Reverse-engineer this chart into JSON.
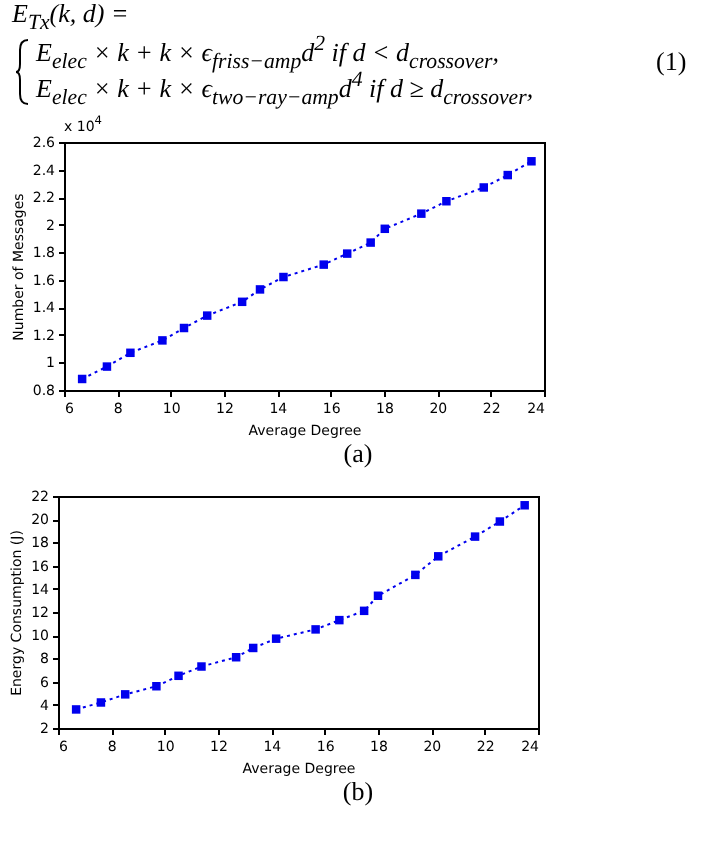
{
  "chart_data": [
    {
      "type": "other",
      "annotations": [
        "E$_{Tx}$(k, d) =",
        "E$_{elec}$ × k + k × ϵ$_{friss−amp}$d$^{2}$    if d < d$_{crossover}$,",
        "E$_{elec}$ × k + k × ϵ$_{two−ray−amp}$d$^{4}$  if d ≥ d$_{crossover}$,",
        "(1)"
      ]
    },
    {
      "type": "line",
      "xlabel": "Average Degree",
      "ylabel": "Number of Messages",
      "marker": "square",
      "line_style": "dotted",
      "xlim": [
        6,
        24
      ],
      "xticks": [
        6,
        8,
        10,
        12,
        14,
        16,
        18,
        20,
        22,
        24
      ],
      "ylim": [
        0.8,
        2.6
      ],
      "yticks": [
        0.8,
        1,
        1.2,
        1.4,
        1.6,
        1.8,
        2,
        2.2,
        2.4,
        2.6
      ],
      "annotations": [
        "x 10$^{4}$",
        "(a)"
      ],
      "series": [
        {
          "color": "#0000ee",
          "x": [
            6.68,
            7.61,
            8.49,
            9.69,
            10.5,
            11.37,
            12.68,
            13.35,
            14.23,
            15.74,
            16.62,
            17.5,
            18.03,
            19.4,
            20.34,
            21.74,
            22.64,
            23.53
          ],
          "values": [
            0.88,
            0.97,
            1.07,
            1.16,
            1.25,
            1.34,
            1.44,
            1.53,
            1.62,
            1.71,
            1.79,
            1.87,
            1.97,
            2.08,
            2.17,
            2.27,
            2.36,
            2.46
          ]
        }
      ]
    },
    {
      "type": "line",
      "xlabel": "Average Degree",
      "ylabel": "Energy Consumption (J)",
      "marker": "square",
      "line_style": "dotted",
      "xlim": [
        6,
        24
      ],
      "xticks": [
        6,
        8,
        10,
        12,
        14,
        16,
        18,
        20,
        22,
        24
      ],
      "ylim": [
        2,
        22
      ],
      "yticks": [
        2,
        4,
        6,
        8,
        10,
        12,
        14,
        16,
        18,
        20,
        22
      ],
      "annotations": [
        "(b)"
      ],
      "series": [
        {
          "color": "#0000ee",
          "x": [
            6.68,
            7.61,
            8.52,
            9.69,
            10.52,
            11.38,
            12.68,
            13.32,
            14.18,
            15.66,
            16.55,
            17.48,
            18.0,
            19.4,
            20.26,
            21.64,
            22.57,
            23.5
          ],
          "values": [
            3.6,
            4.2,
            4.9,
            5.6,
            6.5,
            7.3,
            8.1,
            8.9,
            9.7,
            10.5,
            11.3,
            12.1,
            13.4,
            15.2,
            16.8,
            18.5,
            19.8,
            21.2
          ]
        }
      ]
    }
  ]
}
